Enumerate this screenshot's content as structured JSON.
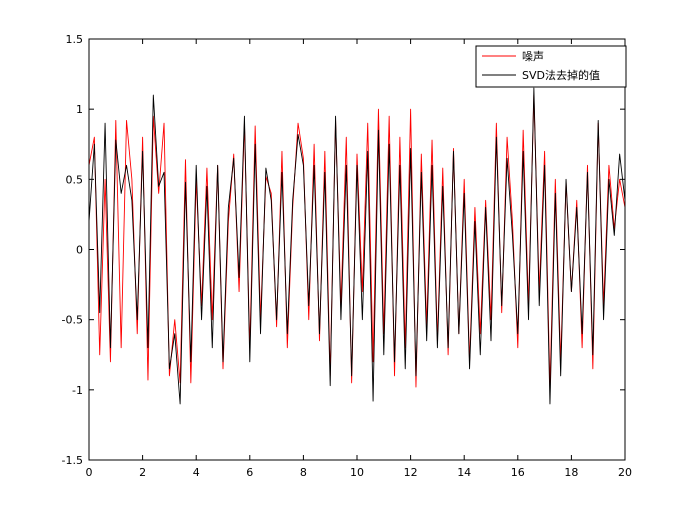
{
  "chart_data": {
    "type": "line",
    "title": "",
    "xlabel": "",
    "ylabel": "",
    "xlim": [
      0,
      20
    ],
    "ylim": [
      -1.5,
      1.5
    ],
    "xticks": [
      0,
      2,
      4,
      6,
      8,
      10,
      12,
      14,
      16,
      18,
      20
    ],
    "yticks": [
      -1.5,
      -1,
      -0.5,
      0,
      0.5,
      1,
      1.5
    ],
    "xtick_labels": [
      "0",
      "2",
      "4",
      "6",
      "8",
      "10",
      "12",
      "14",
      "16",
      "18",
      "20"
    ],
    "ytick_labels": [
      "-1.5",
      "-1",
      "-0.5",
      "0",
      "0.5",
      "1",
      "1.5"
    ],
    "grid": false,
    "legend": {
      "position": "top-right"
    },
    "x": [
      0.0,
      0.2,
      0.4,
      0.6,
      0.8,
      1.0,
      1.2,
      1.4,
      1.6,
      1.8,
      2.0,
      2.2,
      2.4,
      2.6,
      2.8,
      3.0,
      3.2,
      3.4,
      3.6,
      3.8,
      4.0,
      4.2,
      4.4,
      4.6,
      4.8,
      5.0,
      5.2,
      5.4,
      5.6,
      5.8,
      6.0,
      6.2,
      6.4,
      6.6,
      6.8,
      7.0,
      7.2,
      7.4,
      7.6,
      7.8,
      8.0,
      8.2,
      8.4,
      8.6,
      8.8,
      9.0,
      9.2,
      9.4,
      9.6,
      9.8,
      10.0,
      10.2,
      10.4,
      10.6,
      10.8,
      11.0,
      11.2,
      11.4,
      11.6,
      11.8,
      12.0,
      12.2,
      12.4,
      12.6,
      12.8,
      13.0,
      13.2,
      13.4,
      13.6,
      13.8,
      14.0,
      14.2,
      14.4,
      14.6,
      14.8,
      15.0,
      15.2,
      15.4,
      15.6,
      15.8,
      16.0,
      16.2,
      16.4,
      16.6,
      16.8,
      17.0,
      17.2,
      17.4,
      17.6,
      17.8,
      18.0,
      18.2,
      18.4,
      18.6,
      18.8,
      19.0,
      19.2,
      19.4,
      19.6,
      19.8,
      20.0
    ],
    "series": [
      {
        "name": "噪声",
        "color": "#ff0000",
        "values": [
          0.6,
          0.8,
          -0.75,
          0.5,
          -0.8,
          0.92,
          -0.7,
          0.92,
          0.5,
          -0.6,
          0.8,
          -0.93,
          0.95,
          0.4,
          0.9,
          -0.9,
          -0.5,
          -0.95,
          0.64,
          -0.95,
          0.5,
          -0.4,
          0.58,
          -0.5,
          0.6,
          -0.85,
          0.2,
          0.68,
          -0.3,
          0.9,
          -0.7,
          0.88,
          -0.5,
          0.52,
          0.4,
          -0.55,
          0.7,
          -0.7,
          0.3,
          0.9,
          0.65,
          -0.5,
          0.75,
          -0.65,
          0.7,
          -0.9,
          0.92,
          -0.4,
          0.8,
          -0.95,
          0.68,
          -0.3,
          0.9,
          -0.8,
          1.0,
          -0.6,
          0.95,
          -0.9,
          0.8,
          -0.7,
          1.0,
          -0.98,
          0.68,
          -0.55,
          0.78,
          -0.65,
          0.58,
          -0.75,
          0.72,
          -0.6,
          0.5,
          -0.8,
          0.3,
          -0.6,
          0.35,
          -0.5,
          0.9,
          -0.45,
          0.8,
          0.2,
          -0.7,
          0.85,
          -0.4,
          1.1,
          -0.3,
          0.7,
          -0.98,
          0.5,
          -0.8,
          0.48,
          -0.3,
          0.35,
          -0.7,
          0.6,
          -0.85,
          0.9,
          -0.4,
          0.6,
          0.15,
          0.5,
          0.3
        ]
      },
      {
        "name": "SVD法去掉的值",
        "color": "#000000",
        "values": [
          0.2,
          0.75,
          -0.45,
          0.9,
          -0.7,
          0.78,
          0.4,
          0.6,
          0.35,
          -0.5,
          0.7,
          -0.7,
          1.1,
          0.45,
          0.55,
          -0.85,
          -0.6,
          -1.1,
          0.48,
          -0.8,
          0.6,
          -0.5,
          0.45,
          -0.7,
          0.6,
          -0.8,
          0.3,
          0.65,
          -0.2,
          0.95,
          -0.8,
          0.75,
          -0.6,
          0.58,
          0.35,
          -0.5,
          0.55,
          -0.6,
          0.35,
          0.82,
          0.6,
          -0.4,
          0.6,
          -0.6,
          0.55,
          -0.97,
          0.95,
          -0.5,
          0.6,
          -0.9,
          0.6,
          -0.5,
          0.7,
          -1.08,
          0.85,
          -0.75,
          0.75,
          -0.8,
          0.6,
          -0.85,
          0.72,
          -0.9,
          0.55,
          -0.65,
          0.6,
          -0.7,
          0.45,
          -0.7,
          0.7,
          -0.6,
          0.4,
          -0.85,
          0.2,
          -0.75,
          0.3,
          -0.65,
          0.8,
          -0.4,
          0.65,
          0.1,
          -0.6,
          0.7,
          -0.5,
          1.15,
          -0.4,
          0.6,
          -1.1,
          0.4,
          -0.9,
          0.5,
          -0.3,
          0.3,
          -0.6,
          0.55,
          -0.75,
          0.92,
          -0.5,
          0.5,
          0.1,
          0.68,
          0.35
        ]
      }
    ]
  }
}
